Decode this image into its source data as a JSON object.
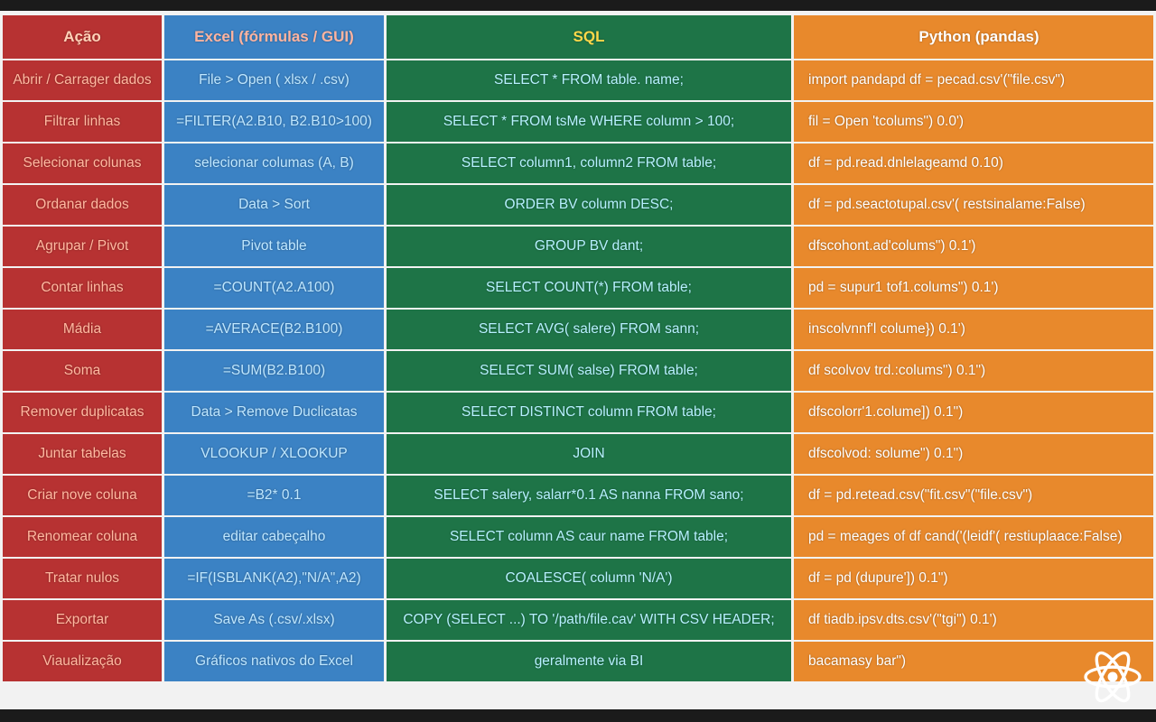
{
  "headers": [
    "Ação",
    "Excel (fórmulas / GUI)",
    "SQL",
    "Python (pandas)"
  ],
  "rows": [
    [
      "Abrir / Carrager dados",
      "File > Open ( xlsx / .csv)",
      "SELECT * FROM table. name;",
      "import pandapd df = pecad.csv'(\"file.csv\")"
    ],
    [
      "Filtrar linhas",
      "=FILTER(A2.B10, B2.B10>100)",
      "SELECT * FROM tsMe WHERE column > 100;",
      "fil = Open 'tcolums\") 0.0')"
    ],
    [
      "Selecionar colunas",
      "selecionar columas (A, B)",
      "SELECT column1, column2 FROM table;",
      "df = pd.read.dnlelageamd 0.10)"
    ],
    [
      "Ordanar dados",
      "Data > Sort",
      "ORDER BV column DESC;",
      "df = pd.seactotupal.csv'( restsinalame:False)"
    ],
    [
      "Agrupar / Pivot",
      "Pivot table",
      "GROUP BV dant;",
      "dfscohont.ad'colums\") 0.1')"
    ],
    [
      "Contar linhas",
      "=COUNT(A2.A100)",
      "SELECT COUNT(*) FROM table;",
      "pd = supur1 tof1.colums\") 0.1')"
    ],
    [
      "Mádia",
      "=AVERACE(B2.B100)",
      "SELECT AVG( salere) FROM sann;",
      "inscolvnnf'l colume}) 0.1')"
    ],
    [
      "Soma",
      "=SUM(B2.B100)",
      "SELECT SUM( salse) FROM table;",
      "df scolvov trd.:colums\") 0.1\")"
    ],
    [
      "Remover duplicatas",
      "Data > Remove Duclicatas",
      "SELECT DISTINCT column FROM table;",
      "dfscolorr'1.colume]) 0.1\")"
    ],
    [
      "Juntar tabelas",
      "VLOOKUP / XLOOKUP",
      "JOIN",
      "dfscolvod: solume\") 0.1\")"
    ],
    [
      "Criar nove coluna",
      "=B2* 0.1",
      "SELECT salery, salarr*0.1 AS nanna FROM sano;",
      "df = pd.retead.csv(\"fit.csv\"(\"file.csv\")"
    ],
    [
      "Renomear coluna",
      "editar cabeçalho",
      "SELECT column AS caur name FROM table;",
      "pd = meages of df cand('(leidf'( restiuplaace:False)"
    ],
    [
      "Tratar nulos",
      "=IF(ISBLANK(A2),\"N/A\",A2)",
      "COALESCE( column 'N/A')",
      "df = pd (dupure']) 0.1\")"
    ],
    [
      "Exportar",
      "Save As (.csv/.xlsx)",
      "COPY (SELECT ...) TO '/path/file.cav' WITH CSV HEADER;",
      "df tiadb.ipsv.dts.csv'(\"tgi\") 0.1')"
    ],
    [
      "Viaualização",
      "Gráficos nativos do Excel",
      "geralmente via BI",
      "bacamasy bar\")"
    ]
  ],
  "colors": {
    "acao": "#b73232",
    "excel": "#3b82c4",
    "sql": "#1e7447",
    "python": "#e8892c"
  },
  "icons": {
    "logo": "atom-icon"
  }
}
